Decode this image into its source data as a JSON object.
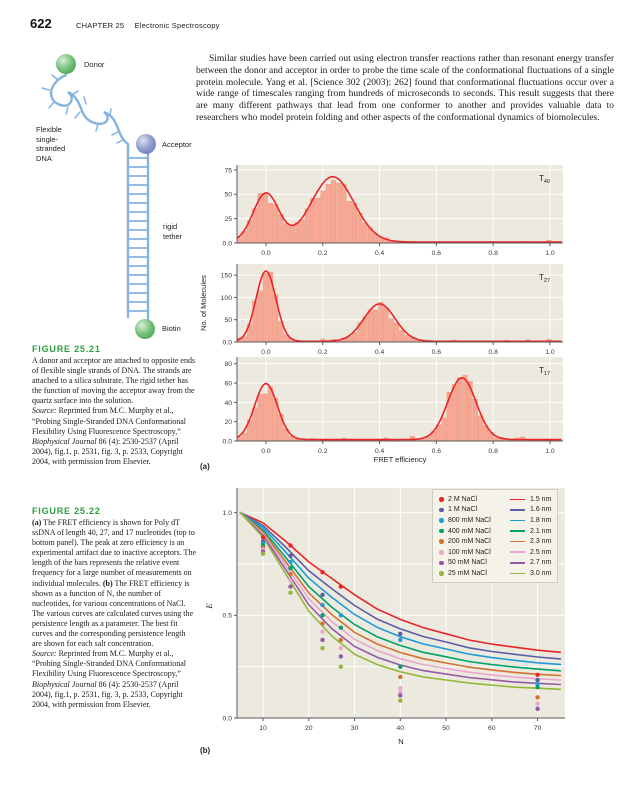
{
  "page": {
    "number": "622",
    "chapter_label": "CHAPTER 25",
    "chapter_title": "Electronic Spectroscopy"
  },
  "paragraph": "Similar studies have been carried out using electron transfer reactions rather than resonant energy transfer between the donor and acceptor in order to probe the time scale of the conformational fluctuations of a single protein molecule. Yang et al. [Science 302 (2003): 262] found that conformational fluctuations occur over a wide range of timescales ranging from hundreds of microseconds to seconds. This result suggests that there are many different pathways that lead from one conformer to another and provides valuable data to researchers who model protein folding and other aspects of the conformational dynamics of biomolecules.",
  "diagram": {
    "donor": "Donor",
    "acceptor": "Acceptor",
    "flexible": "Flexible\nsingle-\nstranded\nDNA",
    "tether": "rigid\ntether",
    "biotin": "Biotin"
  },
  "figure_25_21": {
    "heading": "FIGURE 25.21",
    "caption_segments": [
      {
        "t": "A donor and acceptor are attached to opposite ends of flexible single strands of DNA. The strands are attached to a silica substrate. The rigid tether has the function of moving the acceptor away from the quartz surface into the solution.\n"
      },
      {
        "t": "Source:",
        "i": true
      },
      {
        "t": " Reprinted from M.C. Murphy et al., “Probing Single-Stranded DNA Conformational Flexibility Using Fluorescence Spectroscopy,” "
      },
      {
        "t": "Biophysical Journal",
        "i": true
      },
      {
        "t": " 86 (4): 2530-2537 (April 2004), fig.1, p. 2531, fig. 3, p. 2533, Copyright 2004, with permission from Elsevier."
      }
    ]
  },
  "figure_25_22": {
    "heading": "FIGURE 25.22",
    "caption_segments": [
      {
        "t": "(a)",
        "b": true
      },
      {
        "t": " The FRET efficiency is shown for Poly dT ssDNA of length 40, 27, and 17 nucleotides (top to bottom panel). The peak at zero efficiency is an experimental artifact due to inactive acceptors. The length of the bars represents the relative event frequency for a large number of measurements on individual molecules. "
      },
      {
        "t": "(b)",
        "b": true
      },
      {
        "t": " The FRET efficiency is shown as a function of N, the number of nucleotides, for various concentrations of NaCl. The various curves are calculated curves using the persistence length as a parameter. The best fit curves and the corresponding persistence length are shown for each salt concentration.\n"
      },
      {
        "t": "Source:",
        "i": true
      },
      {
        "t": " Reprinted from M.C. Murphy et al., “Probing Single-Stranded DNA Conformational Flexibility Using Fluorescence Spectroscopy,” "
      },
      {
        "t": "Biophysical Journal",
        "i": true
      },
      {
        "t": " 86 (4): 2530-2537 (April 2004), fig.1, p. 2531, fig. 3, p. 2533, Copyright 2004, with permission from Elsevier."
      }
    ]
  },
  "panel_labels": {
    "a": "(a)",
    "b": "(b)"
  },
  "chart_data": [
    {
      "id": "fret_histograms",
      "type": "bar",
      "xlabel": "FRET efficiency",
      "ylabel": "No. of Molecules",
      "xlim": [
        -0.102,
        1.046
      ],
      "xticks": [
        0.0,
        0.2,
        0.4,
        0.6,
        0.8,
        1.0
      ],
      "bg": "#ece9df",
      "grid": "#ffffff",
      "axis": "#58595b",
      "bar_fill": "#f6a894",
      "bar_stroke": "#ee8f76",
      "curve_color": "#e8262a",
      "panels": [
        {
          "label": "T",
          "label_sub": "40",
          "ymax": 80,
          "curve_base": 1.0,
          "yticks": [
            {
              "v": 0,
              "label": "0.0"
            },
            {
              "v": 25,
              "label": "25"
            },
            {
              "v": 50,
              "label": "50"
            },
            {
              "v": 75,
              "label": "75"
            }
          ],
          "peaks": [
            {
              "center": 0.0,
              "height": 50,
              "sigma": 0.045
            },
            {
              "center": 0.235,
              "height": 67,
              "sigma": 0.075
            }
          ]
        },
        {
          "label": "T",
          "label_sub": "27",
          "ymax": 175,
          "curve_base": 1.5,
          "yticks": [
            {
              "v": 0,
              "label": "0.0"
            },
            {
              "v": 50,
              "label": "50"
            },
            {
              "v": 100,
              "label": "100"
            },
            {
              "v": 150,
              "label": "150"
            }
          ],
          "peaks": [
            {
              "center": 0.0,
              "height": 158,
              "sigma": 0.035
            },
            {
              "center": 0.4,
              "height": 84,
              "sigma": 0.055
            }
          ]
        },
        {
          "label": "T",
          "label_sub": "17",
          "ymax": 87,
          "curve_base": 1.5,
          "yticks": [
            {
              "v": 0,
              "label": "0.0"
            },
            {
              "v": 20,
              "label": "20"
            },
            {
              "v": 40,
              "label": "40"
            },
            {
              "v": 60,
              "label": "60"
            },
            {
              "v": 80,
              "label": "80"
            }
          ],
          "peaks": [
            {
              "center": 0.0,
              "height": 58,
              "sigma": 0.04
            },
            {
              "center": 0.69,
              "height": 64,
              "sigma": 0.05
            }
          ]
        }
      ]
    },
    {
      "id": "fret_vs_N",
      "type": "scatter",
      "xlabel": "N",
      "ylabel": "E",
      "xlim": [
        4.3,
        76
      ],
      "ylim": [
        0,
        1.12
      ],
      "xticks": [
        10,
        20,
        30,
        40,
        50,
        60,
        70
      ],
      "yticks": [
        {
          "v": 0,
          "label": "0.0"
        },
        {
          "v": 0.5,
          "label": "0.5"
        },
        {
          "v": 1.0,
          "label": "1.0"
        }
      ],
      "gridlines_y": [
        0.25,
        0.5,
        0.75,
        1.0
      ],
      "bg": "#ece9df",
      "grid": "#ffffff",
      "axis": "#58595b",
      "legend_position": "top-right",
      "curve_x": [
        5,
        10,
        15,
        20,
        25,
        30,
        35,
        40,
        45,
        50,
        55,
        60,
        65,
        70,
        75
      ],
      "series": [
        {
          "name": "2 M NaCl",
          "persistence": "1.5 nm",
          "color": "#e8262a",
          "curve": [
            1.0,
            0.95,
            0.86,
            0.76,
            0.68,
            0.6,
            0.53,
            0.48,
            0.44,
            0.41,
            0.38,
            0.36,
            0.345,
            0.33,
            0.32
          ],
          "points": [
            [
              10,
              0.88
            ],
            [
              16,
              0.84
            ],
            [
              23,
              0.71
            ],
            [
              27,
              0.64
            ],
            [
              70,
              0.21
            ]
          ]
        },
        {
          "name": "1 M NaCl",
          "persistence": "1.6 nm",
          "color": "#5b5ea6",
          "curve": [
            1.0,
            0.937,
            0.831,
            0.717,
            0.63,
            0.548,
            0.481,
            0.434,
            0.397,
            0.37,
            0.342,
            0.324,
            0.31,
            0.297,
            0.288
          ],
          "points": [
            [
              10,
              0.86
            ],
            [
              16,
              0.79
            ],
            [
              23,
              0.6
            ],
            [
              40,
              0.41
            ],
            [
              70,
              0.185
            ]
          ]
        },
        {
          "name": "800 mM NaCl",
          "persistence": "1.8 nm",
          "color": "#1f9cd8",
          "curve": [
            1.0,
            0.927,
            0.807,
            0.681,
            0.588,
            0.504,
            0.441,
            0.396,
            0.361,
            0.336,
            0.311,
            0.294,
            0.281,
            0.269,
            0.261
          ],
          "points": [
            [
              10,
              0.85
            ],
            [
              16,
              0.76
            ],
            [
              23,
              0.55
            ],
            [
              27,
              0.5
            ],
            [
              40,
              0.38
            ],
            [
              70,
              0.165
            ]
          ]
        },
        {
          "name": "400 mM NaCl",
          "persistence": "2.1 nm",
          "color": "#00a36a",
          "curve": [
            1.0,
            0.915,
            0.78,
            0.64,
            0.54,
            0.455,
            0.395,
            0.353,
            0.32,
            0.298,
            0.275,
            0.26,
            0.248,
            0.238,
            0.23
          ],
          "points": [
            [
              10,
              0.84
            ],
            [
              16,
              0.73
            ],
            [
              23,
              0.5
            ],
            [
              27,
              0.44
            ],
            [
              40,
              0.25
            ],
            [
              70,
              0.15
            ]
          ]
        },
        {
          "name": "200 mM NaCl",
          "persistence": "2.3 nm",
          "color": "#d2722e",
          "curve": [
            1.0,
            0.906,
            0.759,
            0.609,
            0.504,
            0.417,
            0.36,
            0.319,
            0.289,
            0.268,
            0.248,
            0.234,
            0.222,
            0.213,
            0.207
          ],
          "points": [
            [
              10,
              0.83
            ],
            [
              16,
              0.7
            ],
            [
              23,
              0.46
            ],
            [
              27,
              0.38
            ],
            [
              40,
              0.2
            ],
            [
              70,
              0.1
            ]
          ]
        },
        {
          "name": "100 mM NaCl",
          "persistence": "2.5 nm",
          "color": "#e9a7d0",
          "curve": [
            1.0,
            0.898,
            0.74,
            0.58,
            0.47,
            0.383,
            0.328,
            0.289,
            0.26,
            0.241,
            0.223,
            0.21,
            0.199,
            0.191,
            0.185
          ],
          "points": [
            [
              10,
              0.82
            ],
            [
              16,
              0.67
            ],
            [
              23,
              0.42
            ],
            [
              27,
              0.34
            ],
            [
              40,
              0.145
            ],
            [
              40,
              0.125
            ],
            [
              70,
              0.07
            ]
          ]
        },
        {
          "name": "50 mM NaCl",
          "persistence": "2.7 nm",
          "color": "#9659a7",
          "curve": [
            1.0,
            0.889,
            0.721,
            0.551,
            0.436,
            0.348,
            0.295,
            0.258,
            0.231,
            0.214,
            0.197,
            0.186,
            0.175,
            0.169,
            0.163
          ],
          "points": [
            [
              10,
              0.81
            ],
            [
              16,
              0.64
            ],
            [
              23,
              0.38
            ],
            [
              27,
              0.3
            ],
            [
              40,
              0.11
            ],
            [
              70,
              0.045
            ]
          ]
        },
        {
          "name": "25 mM NaCl",
          "persistence": "3.0 nm",
          "color": "#93b83c",
          "curve": [
            1.0,
            0.88,
            0.7,
            0.52,
            0.4,
            0.31,
            0.26,
            0.225,
            0.2,
            0.185,
            0.17,
            0.16,
            0.15,
            0.145,
            0.14
          ],
          "points": [
            [
              10,
              0.8
            ],
            [
              16,
              0.61
            ],
            [
              23,
              0.34
            ],
            [
              27,
              0.25
            ],
            [
              40,
              0.085
            ]
          ]
        }
      ]
    }
  ]
}
